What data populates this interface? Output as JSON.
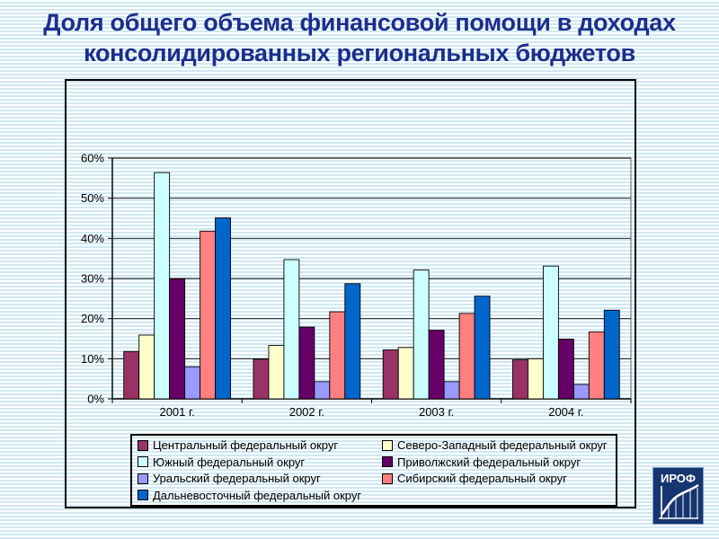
{
  "slide": {
    "title_line1": "Доля общего объема финансовой помощи в доходах",
    "title_line2": "консолидированных региональных бюджетов",
    "title_color": "#1c2e8c"
  },
  "logo": {
    "text": "ИРОФ",
    "bg_color": "#17356f"
  },
  "chart_data": {
    "type": "bar",
    "categories": [
      "2001 г.",
      "2002 г.",
      "2003 г.",
      "2004 г."
    ],
    "series": [
      {
        "name": "Центральный федеральный округ",
        "color": "#993366",
        "values": [
          11.8,
          9.9,
          12.2,
          9.7
        ]
      },
      {
        "name": "Северо-Западный федеральный округ",
        "color": "#ffffcc",
        "values": [
          15.9,
          13.3,
          12.8,
          10.0
        ]
      },
      {
        "name": "Южный федеральный округ",
        "color": "#ccffff",
        "values": [
          56.4,
          34.7,
          32.1,
          33.1
        ]
      },
      {
        "name": "Приволжский федеральный округ",
        "color": "#660066",
        "values": [
          29.9,
          17.9,
          17.1,
          14.9
        ]
      },
      {
        "name": "Уральский федеральный округ",
        "color": "#9999ff",
        "values": [
          8.0,
          4.3,
          4.3,
          3.6
        ]
      },
      {
        "name": "Сибирский федеральный округ",
        "color": "#ff8080",
        "values": [
          41.8,
          21.7,
          21.3,
          16.7
        ]
      },
      {
        "name": "Дальневосточный федеральный округ",
        "color": "#0066cc",
        "values": [
          45.1,
          28.7,
          25.6,
          22.1
        ]
      }
    ],
    "ylim": [
      0,
      60
    ],
    "ytick_step": 10,
    "ytick_labels": [
      "0%",
      "10%",
      "20%",
      "30%",
      "40%",
      "50%",
      "60%"
    ],
    "grid": true,
    "legend_position": "bottom",
    "bar_gap_ratio": 1.5
  }
}
